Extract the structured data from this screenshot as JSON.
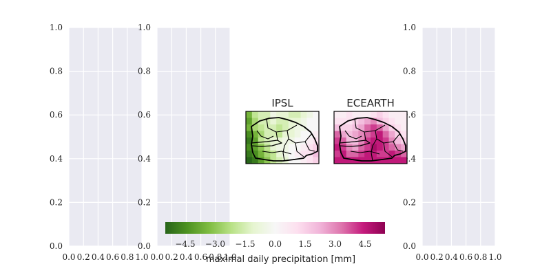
{
  "chart_data": [
    {
      "type": "heatmap",
      "role": "empty-axes",
      "xlim": [
        0.0,
        1.0
      ],
      "ylim": [
        0.0,
        1.0
      ],
      "xticks": [
        "0.0",
        "0.2",
        "0.4",
        "0.6",
        "0.8",
        "1.0"
      ],
      "yticks": [
        "0.0",
        "0.2",
        "0.4",
        "0.6",
        "0.8",
        "1.0"
      ],
      "grid": true
    },
    {
      "type": "heatmap",
      "role": "empty-axes",
      "xlim": [
        0.0,
        1.0
      ],
      "ylim": [
        0.0,
        1.0
      ],
      "xticks": [
        "0.0",
        "0.2",
        "0.4",
        "0.6",
        "0.8",
        "1.0"
      ],
      "yticks": [
        "0.0",
        "0.2",
        "0.4",
        "0.6",
        "0.8",
        "1.0"
      ],
      "grid": true
    },
    {
      "type": "heatmap",
      "role": "map",
      "title": "IPSL",
      "grid_values": [
        [
          -3.5,
          -2.0,
          -1.5,
          -1.5,
          -0.5,
          -1.0,
          -1.0,
          -1.5,
          -1.5,
          -1.0,
          -0.5,
          0.0
        ],
        [
          -4.0,
          -2.5,
          -1.5,
          -1.5,
          -1.0,
          -1.5,
          -1.5,
          -1.0,
          -1.0,
          -0.5,
          0.0,
          0.0
        ],
        [
          -3.5,
          -2.5,
          -2.0,
          -1.5,
          -1.5,
          -2.0,
          -1.5,
          -1.0,
          -0.5,
          -0.5,
          0.0,
          0.0
        ],
        [
          -4.5,
          -3.5,
          -2.5,
          -1.5,
          -1.5,
          -2.0,
          -1.0,
          -1.0,
          -0.5,
          0.0,
          0.0,
          0.5
        ],
        [
          -5.0,
          -4.0,
          -2.0,
          -1.5,
          -1.0,
          -1.0,
          -0.5,
          -0.5,
          0.0,
          0.0,
          0.5,
          1.0
        ],
        [
          -4.5,
          -4.0,
          -3.0,
          -2.0,
          -1.0,
          -0.5,
          -0.5,
          0.0,
          0.0,
          0.5,
          1.0,
          1.5
        ],
        [
          -5.0,
          -4.5,
          -3.5,
          -2.5,
          -2.0,
          -1.0,
          -0.5,
          0.0,
          0.5,
          1.0,
          1.0,
          2.0
        ],
        [
          -5.5,
          -5.0,
          -4.0,
          -3.0,
          -2.0,
          -1.5,
          -1.0,
          0.0,
          0.0,
          0.5,
          1.0,
          1.5
        ]
      ]
    },
    {
      "type": "heatmap",
      "role": "map",
      "title": "ECEARTH",
      "grid_values": [
        [
          0.5,
          0.5,
          1.0,
          0.5,
          0.5,
          0.5,
          1.0,
          1.5,
          1.0,
          0.5,
          0.5,
          0.5
        ],
        [
          1.0,
          1.0,
          1.0,
          1.5,
          2.0,
          2.5,
          3.0,
          2.0,
          1.5,
          1.0,
          0.5,
          0.5
        ],
        [
          2.0,
          1.5,
          1.5,
          2.0,
          2.5,
          3.5,
          4.0,
          3.5,
          2.5,
          1.5,
          1.0,
          0.5
        ],
        [
          3.5,
          2.5,
          2.0,
          2.5,
          3.0,
          3.5,
          4.0,
          4.5,
          3.5,
          2.5,
          1.5,
          1.0
        ],
        [
          4.0,
          3.5,
          2.0,
          2.0,
          3.0,
          4.0,
          4.5,
          4.5,
          4.0,
          3.0,
          2.0,
          1.5
        ],
        [
          4.5,
          4.0,
          3.0,
          2.5,
          3.5,
          4.0,
          5.0,
          4.5,
          4.0,
          3.5,
          3.0,
          2.5
        ],
        [
          4.0,
          4.5,
          3.5,
          3.5,
          4.0,
          4.5,
          4.5,
          4.0,
          4.0,
          4.5,
          4.0,
          3.5
        ],
        [
          4.5,
          4.5,
          4.5,
          4.5,
          4.5,
          4.5,
          4.5,
          4.5,
          4.5,
          4.5,
          4.5,
          4.5
        ]
      ]
    },
    {
      "type": "heatmap",
      "role": "empty-axes",
      "xlim": [
        0.0,
        1.0
      ],
      "ylim": [
        0.0,
        1.0
      ],
      "xticks": [
        "0.0",
        "0.2",
        "0.4",
        "0.6",
        "0.8",
        "1.0"
      ],
      "yticks": [
        "0.0",
        "0.2",
        "0.4",
        "0.6",
        "0.8",
        "1.0"
      ],
      "grid": true
    },
    {
      "type": "heatmap",
      "role": "colorbar",
      "label": "maximal daily precipitation [mm]",
      "vmin": -5.5,
      "vmax": 5.5,
      "ticks": [
        "−4.5",
        "−3.0",
        "−1.5",
        "0.0",
        "1.5",
        "3.0",
        "4.5"
      ],
      "tick_values": [
        -4.5,
        -3.0,
        -1.5,
        0.0,
        1.5,
        3.0,
        4.5
      ],
      "colormap": "PiYG-reversed",
      "colors": [
        "#276419",
        "#4d9221",
        "#7fbc41",
        "#b8e186",
        "#e6f5d0",
        "#f7f7f7",
        "#fde0ef",
        "#f1b6da",
        "#de77ae",
        "#c51b7d",
        "#8e0152"
      ]
    }
  ]
}
